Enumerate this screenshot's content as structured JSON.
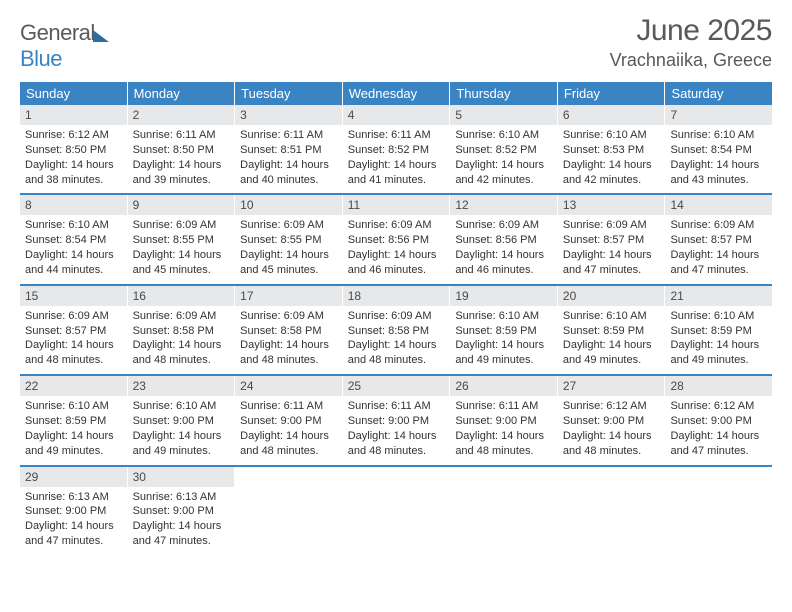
{
  "logo": {
    "text1": "General",
    "text2": "Blue"
  },
  "title": {
    "month": "June 2025",
    "location": "Vrachnaiika, Greece"
  },
  "weekdays": [
    "Sunday",
    "Monday",
    "Tuesday",
    "Wednesday",
    "Thursday",
    "Friday",
    "Saturday"
  ],
  "colors": {
    "header_bg": "#3b84c4",
    "daynum_bg": "#e7e8ea",
    "rule": "#3b84c4"
  },
  "weeks": [
    [
      {
        "n": "1",
        "sr": "6:12 AM",
        "ss": "8:50 PM",
        "dl": "14 hours and 38 minutes."
      },
      {
        "n": "2",
        "sr": "6:11 AM",
        "ss": "8:50 PM",
        "dl": "14 hours and 39 minutes."
      },
      {
        "n": "3",
        "sr": "6:11 AM",
        "ss": "8:51 PM",
        "dl": "14 hours and 40 minutes."
      },
      {
        "n": "4",
        "sr": "6:11 AM",
        "ss": "8:52 PM",
        "dl": "14 hours and 41 minutes."
      },
      {
        "n": "5",
        "sr": "6:10 AM",
        "ss": "8:52 PM",
        "dl": "14 hours and 42 minutes."
      },
      {
        "n": "6",
        "sr": "6:10 AM",
        "ss": "8:53 PM",
        "dl": "14 hours and 42 minutes."
      },
      {
        "n": "7",
        "sr": "6:10 AM",
        "ss": "8:54 PM",
        "dl": "14 hours and 43 minutes."
      }
    ],
    [
      {
        "n": "8",
        "sr": "6:10 AM",
        "ss": "8:54 PM",
        "dl": "14 hours and 44 minutes."
      },
      {
        "n": "9",
        "sr": "6:09 AM",
        "ss": "8:55 PM",
        "dl": "14 hours and 45 minutes."
      },
      {
        "n": "10",
        "sr": "6:09 AM",
        "ss": "8:55 PM",
        "dl": "14 hours and 45 minutes."
      },
      {
        "n": "11",
        "sr": "6:09 AM",
        "ss": "8:56 PM",
        "dl": "14 hours and 46 minutes."
      },
      {
        "n": "12",
        "sr": "6:09 AM",
        "ss": "8:56 PM",
        "dl": "14 hours and 46 minutes."
      },
      {
        "n": "13",
        "sr": "6:09 AM",
        "ss": "8:57 PM",
        "dl": "14 hours and 47 minutes."
      },
      {
        "n": "14",
        "sr": "6:09 AM",
        "ss": "8:57 PM",
        "dl": "14 hours and 47 minutes."
      }
    ],
    [
      {
        "n": "15",
        "sr": "6:09 AM",
        "ss": "8:57 PM",
        "dl": "14 hours and 48 minutes."
      },
      {
        "n": "16",
        "sr": "6:09 AM",
        "ss": "8:58 PM",
        "dl": "14 hours and 48 minutes."
      },
      {
        "n": "17",
        "sr": "6:09 AM",
        "ss": "8:58 PM",
        "dl": "14 hours and 48 minutes."
      },
      {
        "n": "18",
        "sr": "6:09 AM",
        "ss": "8:58 PM",
        "dl": "14 hours and 48 minutes."
      },
      {
        "n": "19",
        "sr": "6:10 AM",
        "ss": "8:59 PM",
        "dl": "14 hours and 49 minutes."
      },
      {
        "n": "20",
        "sr": "6:10 AM",
        "ss": "8:59 PM",
        "dl": "14 hours and 49 minutes."
      },
      {
        "n": "21",
        "sr": "6:10 AM",
        "ss": "8:59 PM",
        "dl": "14 hours and 49 minutes."
      }
    ],
    [
      {
        "n": "22",
        "sr": "6:10 AM",
        "ss": "8:59 PM",
        "dl": "14 hours and 49 minutes."
      },
      {
        "n": "23",
        "sr": "6:10 AM",
        "ss": "9:00 PM",
        "dl": "14 hours and 49 minutes."
      },
      {
        "n": "24",
        "sr": "6:11 AM",
        "ss": "9:00 PM",
        "dl": "14 hours and 48 minutes."
      },
      {
        "n": "25",
        "sr": "6:11 AM",
        "ss": "9:00 PM",
        "dl": "14 hours and 48 minutes."
      },
      {
        "n": "26",
        "sr": "6:11 AM",
        "ss": "9:00 PM",
        "dl": "14 hours and 48 minutes."
      },
      {
        "n": "27",
        "sr": "6:12 AM",
        "ss": "9:00 PM",
        "dl": "14 hours and 48 minutes."
      },
      {
        "n": "28",
        "sr": "6:12 AM",
        "ss": "9:00 PM",
        "dl": "14 hours and 47 minutes."
      }
    ],
    [
      {
        "n": "29",
        "sr": "6:13 AM",
        "ss": "9:00 PM",
        "dl": "14 hours and 47 minutes."
      },
      {
        "n": "30",
        "sr": "6:13 AM",
        "ss": "9:00 PM",
        "dl": "14 hours and 47 minutes."
      },
      null,
      null,
      null,
      null,
      null
    ]
  ],
  "labels": {
    "sunrise": "Sunrise: ",
    "sunset": "Sunset: ",
    "daylight": "Daylight: "
  }
}
